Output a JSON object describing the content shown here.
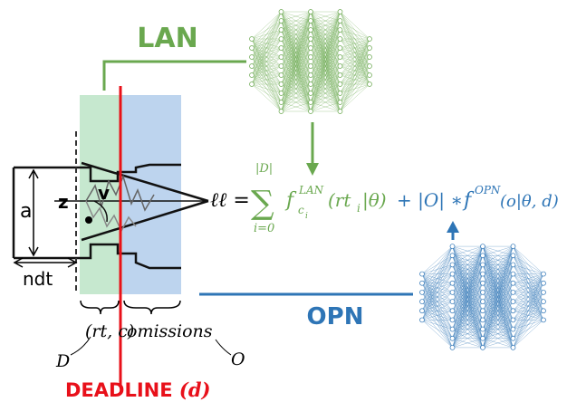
{
  "labels": {
    "lan": "LAN",
    "opn": "OPN",
    "a": "a",
    "z": "z",
    "v": "v",
    "ndt": "ndt",
    "rt_c": "(rt, c)",
    "omissions": "omissions",
    "D": "D",
    "O": "O",
    "deadline": "DEADLINE",
    "deadline_var": "(d)"
  },
  "formula": {
    "lhs": "ℓℓ =",
    "sum": "∑",
    "upper": "|D|",
    "lower": "i=0",
    "lan_f": "f",
    "lan_sub": "c",
    "lan_subsub": "i",
    "lan_sup": "LAN",
    "lan_arg": "(rt",
    "lan_arg_sub": "i",
    "lan_arg_end": "|θ)",
    "plus": "+ |O| ∗",
    "opn_f": "f",
    "opn_sup": "OPN",
    "opn_arg": "(o|θ, d)"
  }
}
